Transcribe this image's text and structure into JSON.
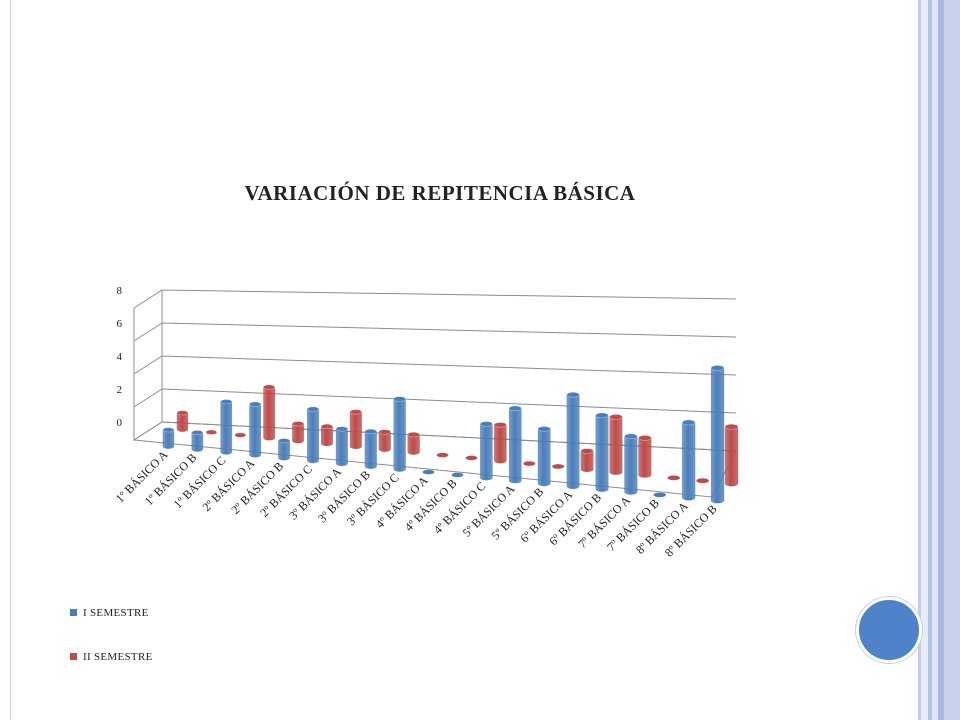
{
  "slide": {
    "colors": {
      "accent": "#4e82c9",
      "band": "#c5cde6"
    }
  },
  "chart_data": {
    "type": "bar",
    "style": "3d-clustered-column",
    "title": "VARIACIÓN DE REPITENCIA BÁSICA",
    "xlabel": "",
    "ylabel": "",
    "ylim": [
      0,
      8
    ],
    "yticks": [
      0,
      2,
      4,
      6,
      8
    ],
    "grid": true,
    "legend_position": "bottom-left",
    "categories": [
      "1º BÁSICO A",
      "1º BÁSICO B",
      "1º BÁSICO C",
      "2º BÁSICO A",
      "2º BÁSICO B",
      "2º BÁSICO C",
      "3º BÁSICO A",
      "3º BÁSICO B",
      "3º BÁSICO C",
      "4º BÁSICO A",
      "4º BÁSICO B",
      "4º BÁSICO C",
      "5º BÁSICO A",
      "5º BÁSICO B",
      "6º BÁSICO A",
      "6º BÁSICO B",
      "7º BÁSICO A",
      "7º BÁSICO B",
      "8º BÁSICO A",
      "8º BÁSICO B"
    ],
    "series": [
      {
        "name": "I SEMESTRE",
        "color": "#4a7ebb",
        "values": [
          1,
          1,
          3,
          3,
          1,
          3,
          2,
          2,
          4,
          0,
          0,
          3,
          4,
          3,
          5,
          4,
          3,
          0,
          4,
          7
        ]
      },
      {
        "name": "II SEMESTRE",
        "color": "#be4b48",
        "values": [
          1,
          0,
          0,
          3,
          1,
          1,
          2,
          1,
          1,
          0,
          0,
          2,
          0,
          0,
          1,
          3,
          2,
          0,
          0,
          3
        ]
      }
    ]
  }
}
